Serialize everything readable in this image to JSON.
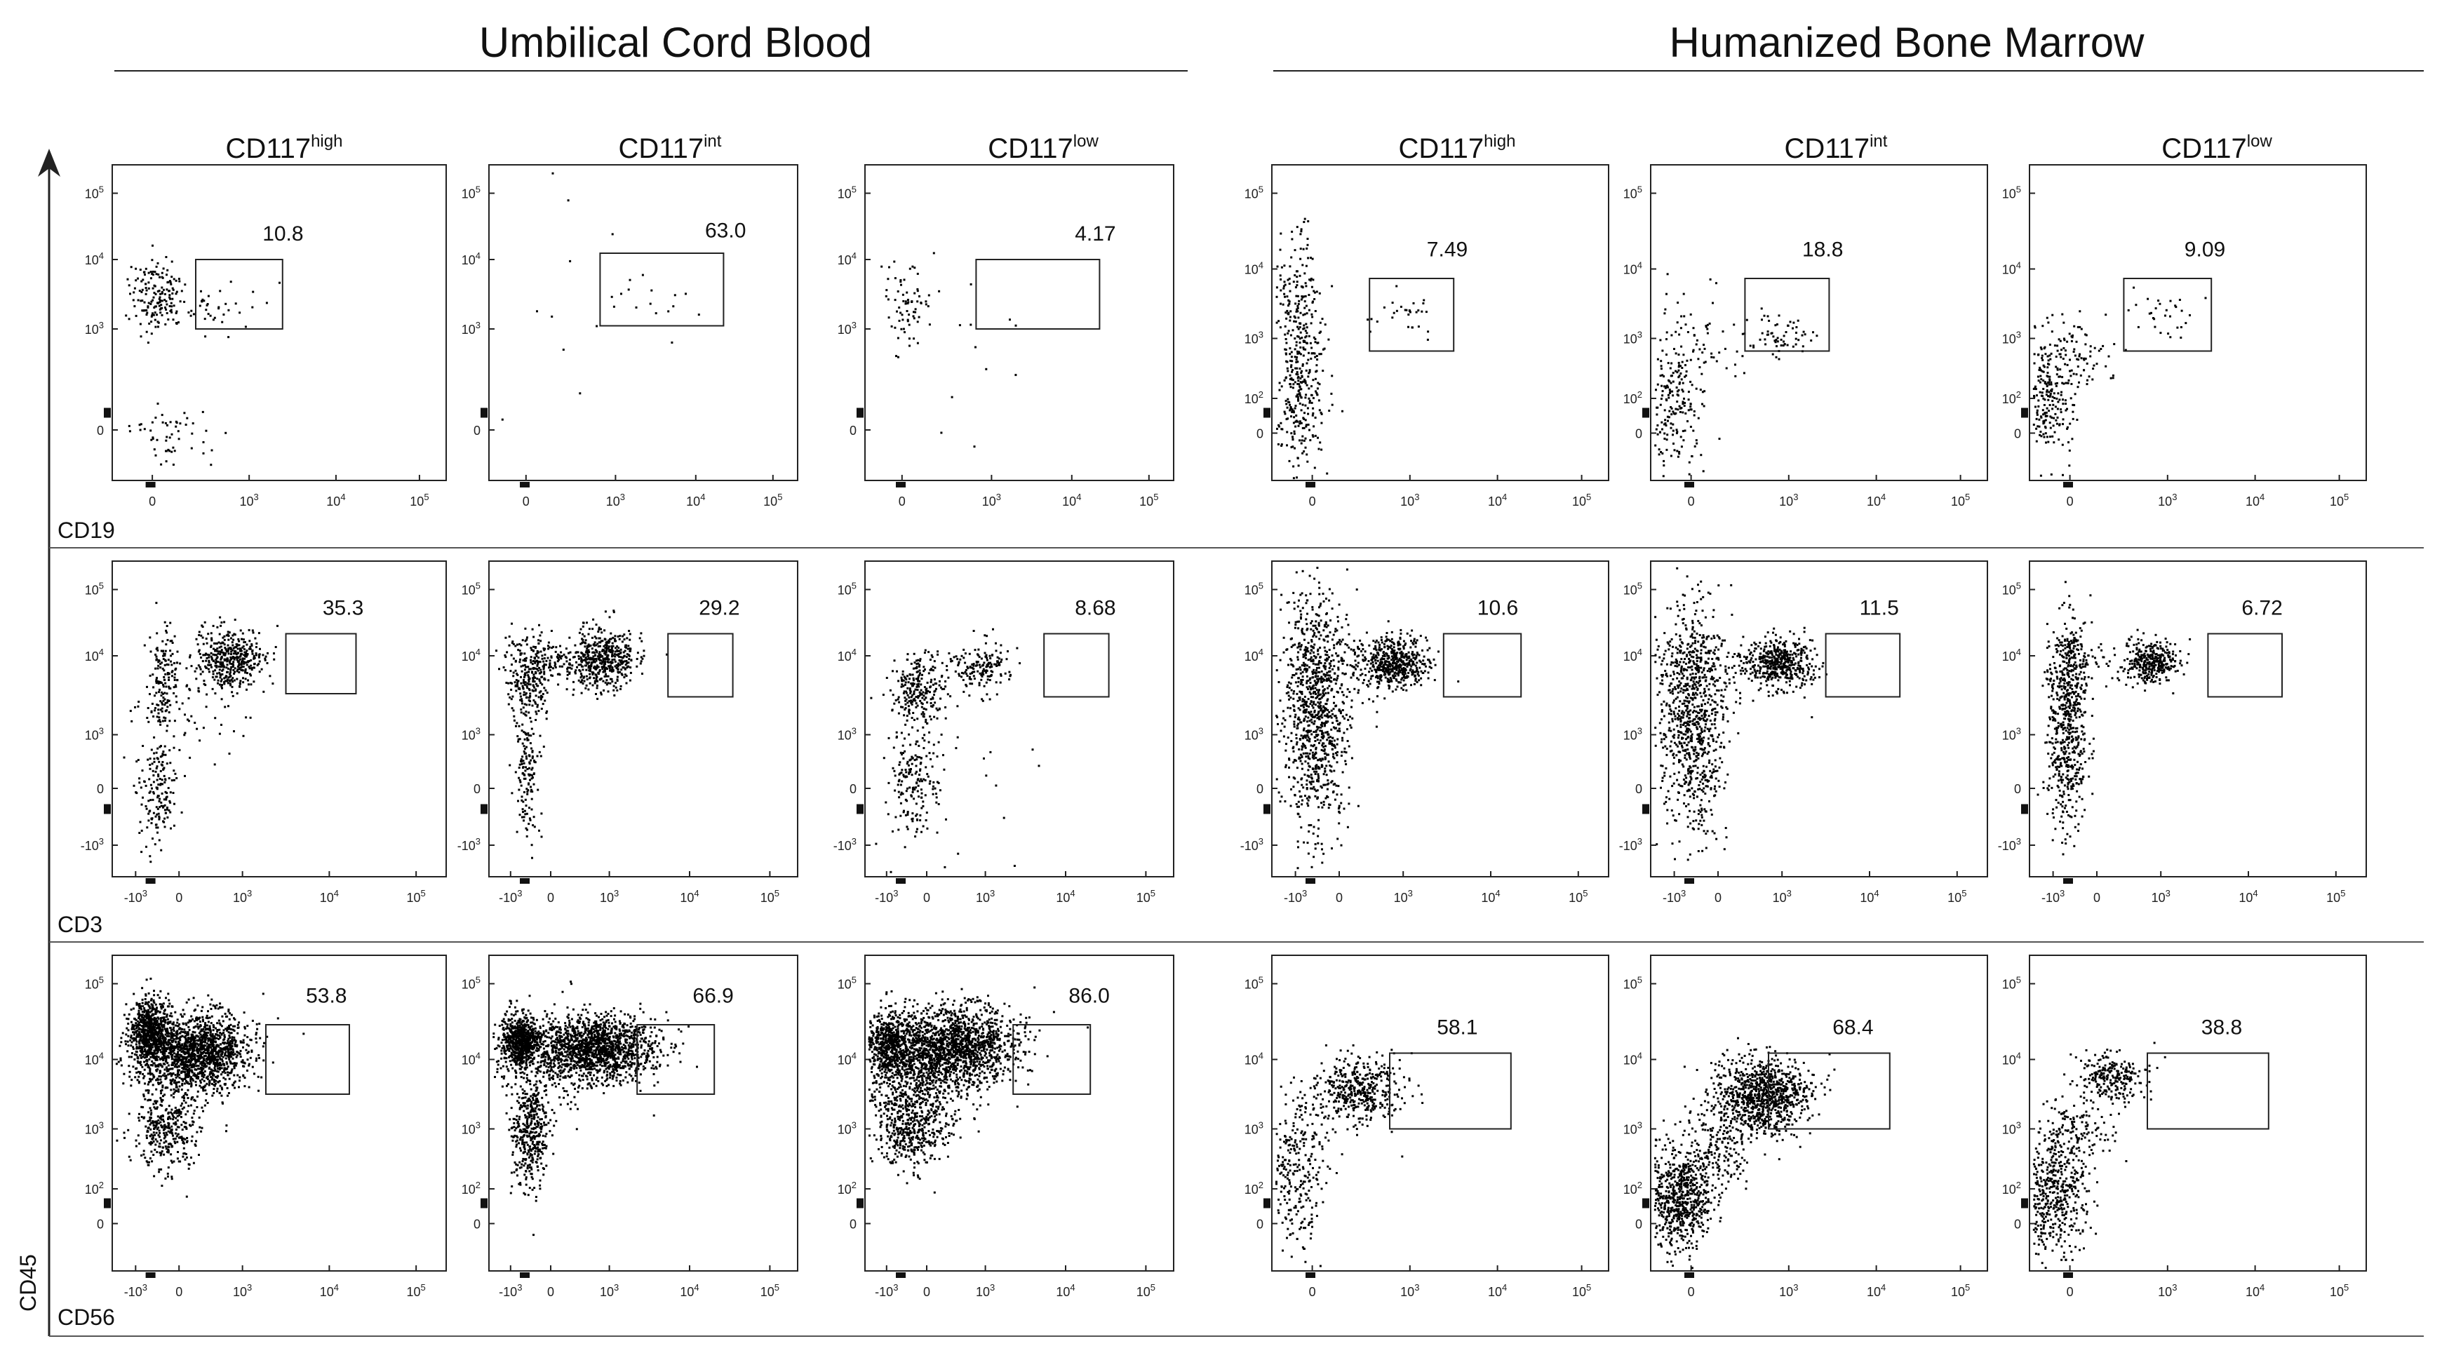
{
  "groups": [
    {
      "title": "Umbilical Cord Blood"
    },
    {
      "title": "Humanized Bone Marrow"
    }
  ],
  "columns": [
    {
      "base": "CD117",
      "sup": "high"
    },
    {
      "base": "CD117",
      "sup": "int"
    },
    {
      "base": "CD117",
      "sup": "low"
    },
    {
      "base": "CD117",
      "sup": "high"
    },
    {
      "base": "CD117",
      "sup": "int"
    },
    {
      "base": "CD117",
      "sup": "low"
    }
  ],
  "rows": [
    {
      "x_marker": "CD19"
    },
    {
      "x_marker": "CD3"
    },
    {
      "x_marker": "CD56"
    }
  ],
  "y_marker": "CD45",
  "chart_data": [
    {
      "type": "scatter",
      "title": "CD117high",
      "group": "Umbilical Cord Blood",
      "xlabel": "CD19",
      "ylabel": "CD45",
      "y_ticks": [
        "0",
        "10^3",
        "10^4",
        "10^5"
      ],
      "x_ticks": [
        "0",
        "10^3",
        "10^4",
        "10^5"
      ],
      "gate_percent": "10.8"
    },
    {
      "type": "scatter",
      "title": "CD117int",
      "group": "Umbilical Cord Blood",
      "xlabel": "CD19",
      "ylabel": "CD45",
      "y_ticks": [
        "0",
        "10^3",
        "10^4",
        "10^5"
      ],
      "x_ticks": [
        "0",
        "10^3",
        "10^4",
        "10^5"
      ],
      "gate_percent": "63.0"
    },
    {
      "type": "scatter",
      "title": "CD117low",
      "group": "Umbilical Cord Blood",
      "xlabel": "CD19",
      "ylabel": "CD45",
      "y_ticks": [
        "0",
        "10^3",
        "10^4",
        "10^5"
      ],
      "x_ticks": [
        "0",
        "10^3",
        "10^4",
        "10^5"
      ],
      "gate_percent": "4.17"
    },
    {
      "type": "scatter",
      "title": "CD117high",
      "group": "Humanized Bone Marrow",
      "xlabel": "CD19",
      "ylabel": "CD45",
      "y_ticks": [
        "0",
        "10^2",
        "10^3",
        "10^4",
        "10^5"
      ],
      "x_ticks": [
        "0",
        "10^3",
        "10^4",
        "10^5"
      ],
      "gate_percent": "7.49"
    },
    {
      "type": "scatter",
      "title": "CD117int",
      "group": "Humanized Bone Marrow",
      "xlabel": "CD19",
      "ylabel": "CD45",
      "y_ticks": [
        "0",
        "10^2",
        "10^3",
        "10^4",
        "10^5"
      ],
      "x_ticks": [
        "0",
        "10^3",
        "10^4",
        "10^5"
      ],
      "gate_percent": "18.8"
    },
    {
      "type": "scatter",
      "title": "CD117low",
      "group": "Humanized Bone Marrow",
      "xlabel": "CD19",
      "ylabel": "CD45",
      "y_ticks": [
        "0",
        "10^2",
        "10^3",
        "10^4",
        "10^5"
      ],
      "x_ticks": [
        "0",
        "10^3",
        "10^4",
        "10^5"
      ],
      "gate_percent": "9.09"
    },
    {
      "type": "scatter",
      "title": "CD117high",
      "group": "Umbilical Cord Blood",
      "xlabel": "CD3",
      "ylabel": "CD45",
      "y_ticks": [
        "-10^3",
        "0",
        "10^3",
        "10^4",
        "10^5"
      ],
      "x_ticks": [
        "-10^3",
        "0",
        "10^3",
        "10^4",
        "10^5"
      ],
      "gate_percent": "35.3"
    },
    {
      "type": "scatter",
      "title": "CD117int",
      "group": "Umbilical Cord Blood",
      "xlabel": "CD3",
      "ylabel": "CD45",
      "y_ticks": [
        "-10^3",
        "0",
        "10^3",
        "10^4",
        "10^5"
      ],
      "x_ticks": [
        "-10^3",
        "0",
        "10^3",
        "10^4",
        "10^5"
      ],
      "gate_percent": "29.2"
    },
    {
      "type": "scatter",
      "title": "CD117low",
      "group": "Umbilical Cord Blood",
      "xlabel": "CD3",
      "ylabel": "CD45",
      "y_ticks": [
        "-10^3",
        "0",
        "10^3",
        "10^4",
        "10^5"
      ],
      "x_ticks": [
        "-10^3",
        "0",
        "10^3",
        "10^4",
        "10^5"
      ],
      "gate_percent": "8.68"
    },
    {
      "type": "scatter",
      "title": "CD117high",
      "group": "Humanized Bone Marrow",
      "xlabel": "CD3",
      "ylabel": "CD45",
      "y_ticks": [
        "-10^3",
        "0",
        "10^3",
        "10^4",
        "10^5"
      ],
      "x_ticks": [
        "-10^3",
        "0",
        "10^3",
        "10^4",
        "10^5"
      ],
      "gate_percent": "10.6"
    },
    {
      "type": "scatter",
      "title": "CD117int",
      "group": "Humanized Bone Marrow",
      "xlabel": "CD3",
      "ylabel": "CD45",
      "y_ticks": [
        "-10^3",
        "0",
        "10^3",
        "10^4",
        "10^5"
      ],
      "x_ticks": [
        "-10^3",
        "0",
        "10^3",
        "10^4",
        "10^5"
      ],
      "gate_percent": "11.5"
    },
    {
      "type": "scatter",
      "title": "CD117low",
      "group": "Humanized Bone Marrow",
      "xlabel": "CD3",
      "ylabel": "CD45",
      "y_ticks": [
        "-10^3",
        "0",
        "10^3",
        "10^4",
        "10^5"
      ],
      "x_ticks": [
        "-10^3",
        "0",
        "10^3",
        "10^4",
        "10^5"
      ],
      "gate_percent": "6.72"
    },
    {
      "type": "scatter",
      "title": "CD117high",
      "group": "Umbilical Cord Blood",
      "xlabel": "CD56",
      "ylabel": "CD45",
      "y_ticks": [
        "0",
        "10^2",
        "10^3",
        "10^4",
        "10^5"
      ],
      "x_ticks": [
        "-10^3",
        "0",
        "10^3",
        "10^4",
        "10^5"
      ],
      "gate_percent": "53.8"
    },
    {
      "type": "scatter",
      "title": "CD117int",
      "group": "Umbilical Cord Blood",
      "xlabel": "CD56",
      "ylabel": "CD45",
      "y_ticks": [
        "0",
        "10^2",
        "10^3",
        "10^4",
        "10^5"
      ],
      "x_ticks": [
        "-10^3",
        "0",
        "10^3",
        "10^4",
        "10^5"
      ],
      "gate_percent": "66.9"
    },
    {
      "type": "scatter",
      "title": "CD117low",
      "group": "Umbilical Cord Blood",
      "xlabel": "CD56",
      "ylabel": "CD45",
      "y_ticks": [
        "0",
        "10^2",
        "10^3",
        "10^4",
        "10^5"
      ],
      "x_ticks": [
        "-10^3",
        "0",
        "10^3",
        "10^4",
        "10^5"
      ],
      "gate_percent": "86.0"
    },
    {
      "type": "scatter",
      "title": "CD117high",
      "group": "Humanized Bone Marrow",
      "xlabel": "CD56",
      "ylabel": "CD45",
      "y_ticks": [
        "0",
        "10^2",
        "10^3",
        "10^4",
        "10^5"
      ],
      "x_ticks": [
        "0",
        "10^3",
        "10^4",
        "10^5"
      ],
      "gate_percent": "58.1"
    },
    {
      "type": "scatter",
      "title": "CD117int",
      "group": "Humanized Bone Marrow",
      "xlabel": "CD56",
      "ylabel": "CD45",
      "y_ticks": [
        "0",
        "10^2",
        "10^3",
        "10^4",
        "10^5"
      ],
      "x_ticks": [
        "0",
        "10^3",
        "10^4",
        "10^5"
      ],
      "gate_percent": "68.4"
    },
    {
      "type": "scatter",
      "title": "CD117low",
      "group": "Humanized Bone Marrow",
      "xlabel": "CD56",
      "ylabel": "CD45",
      "y_ticks": [
        "0",
        "10^2",
        "10^3",
        "10^4",
        "10^5"
      ],
      "x_ticks": [
        "0",
        "10^3",
        "10^4",
        "10^5"
      ],
      "gate_percent": "38.8"
    }
  ]
}
